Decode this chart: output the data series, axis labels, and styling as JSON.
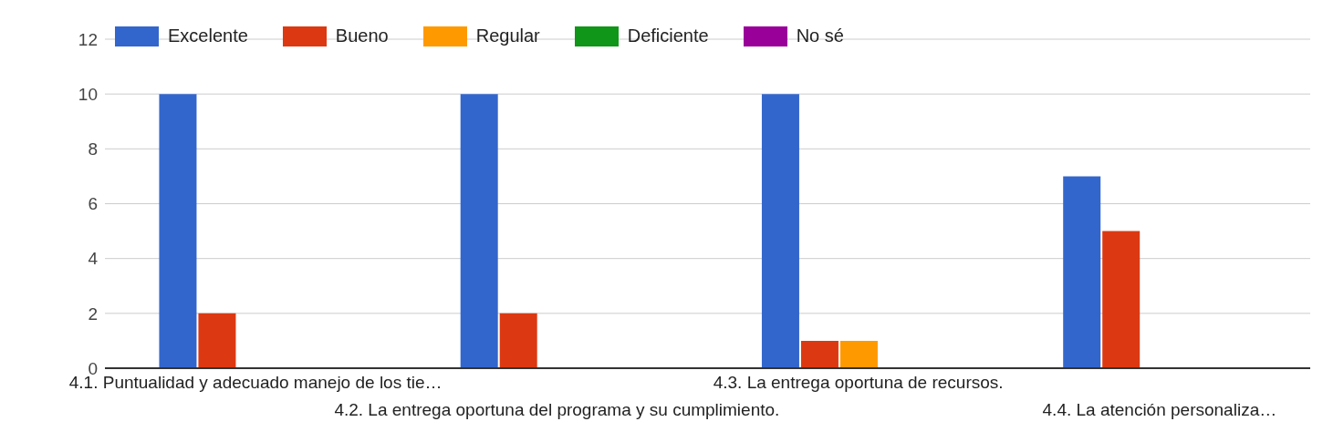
{
  "chart_data": {
    "type": "bar",
    "categories": [
      "4.1. Puntualidad y adecuado manejo de los tie…",
      "4.2. La entrega oportuna del programa y su cumplimiento.",
      "4.3. La entrega oportuna de recursos.",
      "4.4. La atención personaliza…"
    ],
    "series": [
      {
        "name": "Excelente",
        "color": "#3366cc",
        "values": [
          10,
          10,
          10,
          7
        ]
      },
      {
        "name": "Bueno",
        "color": "#dc3912",
        "values": [
          2,
          2,
          1,
          5
        ]
      },
      {
        "name": "Regular",
        "color": "#ff9900",
        "values": [
          0,
          0,
          1,
          0
        ]
      },
      {
        "name": "Deficiente",
        "color": "#109618",
        "values": [
          0,
          0,
          0,
          0
        ]
      },
      {
        "name": "No sé",
        "color": "#990099",
        "values": [
          0,
          0,
          0,
          0
        ]
      }
    ],
    "ylim": [
      0,
      12
    ],
    "yticks": [
      0,
      2,
      4,
      6,
      8,
      10,
      12
    ],
    "grid": "y",
    "legend": "top left"
  }
}
